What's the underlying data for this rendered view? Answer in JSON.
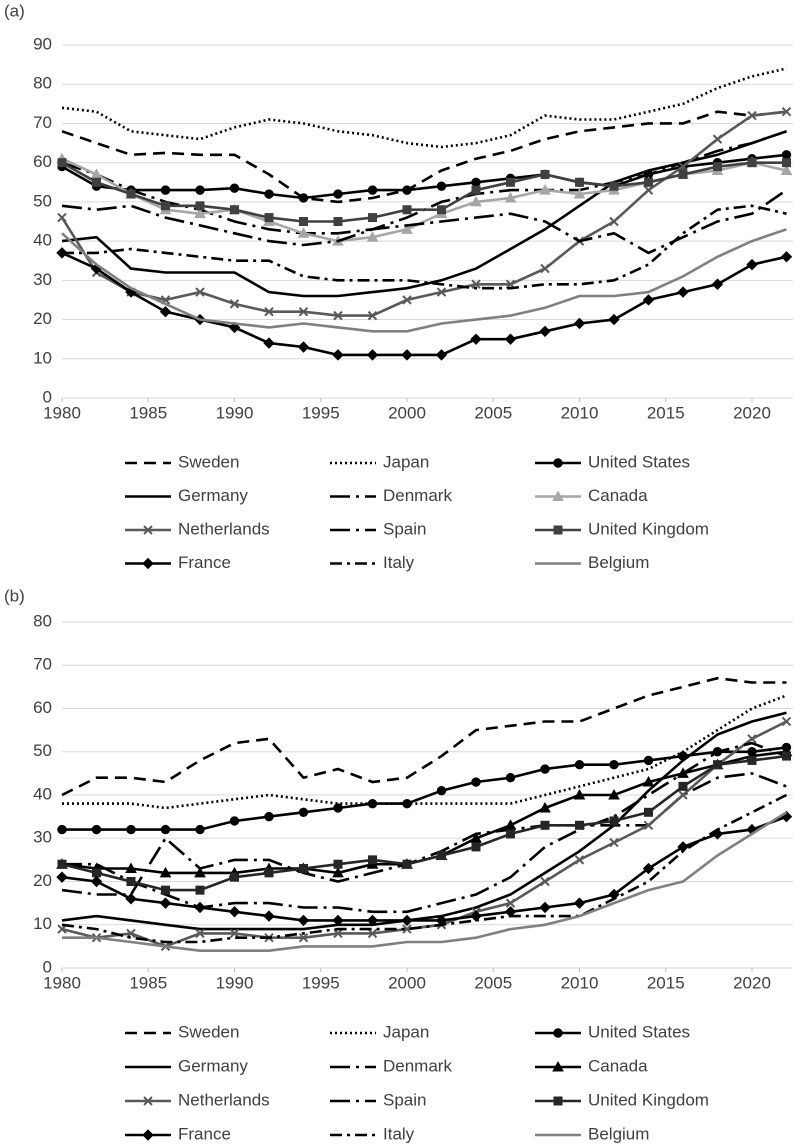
{
  "chart_data": [
    {
      "type": "line",
      "label": "(a)",
      "x": [
        1980,
        1982,
        1984,
        1986,
        1988,
        1990,
        1992,
        1994,
        1996,
        1998,
        2000,
        2002,
        2004,
        2006,
        2008,
        2010,
        2012,
        2014,
        2016,
        2018,
        2020,
        2022
      ],
      "xlim": [
        1980,
        2022
      ],
      "xticks": [
        1980,
        1985,
        1990,
        1995,
        2000,
        2005,
        2010,
        2015,
        2020
      ],
      "ylim": [
        0,
        90
      ],
      "yticks": [
        0,
        10,
        20,
        30,
        40,
        50,
        60,
        70,
        80,
        90
      ],
      "grid": true,
      "series": [
        {
          "name": "Sweden",
          "color": "#000000",
          "dash": "dashed",
          "marker": "none",
          "values": [
            68,
            65,
            62,
            62.5,
            62,
            62,
            57,
            51,
            50,
            51,
            53,
            58,
            61,
            63,
            66,
            68,
            69,
            70,
            70,
            73,
            72,
            73
          ]
        },
        {
          "name": "Japan",
          "color": "#000000",
          "dash": "dotted",
          "marker": "none",
          "values": [
            74,
            73,
            68,
            67,
            66,
            69,
            71,
            70,
            68,
            67,
            65,
            64,
            65,
            67,
            72,
            71,
            71,
            73,
            75,
            79,
            82,
            84
          ]
        },
        {
          "name": "United States",
          "color": "#000000",
          "dash": "solid",
          "marker": "circle",
          "values": [
            59,
            54,
            53,
            53,
            53,
            53.5,
            52,
            51,
            52,
            53,
            53,
            54,
            55,
            56,
            57,
            55,
            54,
            57,
            59,
            60,
            61,
            62
          ]
        },
        {
          "name": "Germany",
          "color": "#000000",
          "dash": "solid",
          "marker": "none",
          "values": [
            40,
            41,
            33,
            32,
            32,
            32,
            27,
            26,
            26,
            27,
            28,
            30,
            33,
            38,
            43,
            49,
            55,
            58,
            60,
            62,
            65,
            68
          ]
        },
        {
          "name": "Denmark",
          "color": "#000000",
          "dash": "long-dash-dot",
          "marker": "none",
          "values": [
            60,
            57,
            53,
            50,
            48,
            45,
            43,
            42,
            42,
            43,
            46,
            50,
            52,
            53,
            53,
            53,
            55,
            57,
            60,
            63,
            65,
            68
          ]
        },
        {
          "name": "Canada",
          "color": "#a6a6a6",
          "dash": "solid",
          "marker": "triangle",
          "values": [
            61,
            57,
            52,
            48,
            47,
            48,
            45,
            42,
            40,
            41,
            43,
            47,
            50,
            51,
            53,
            52,
            53,
            55,
            57,
            58,
            60,
            58
          ]
        },
        {
          "name": "Netherlands",
          "color": "#595959",
          "dash": "solid",
          "marker": "x",
          "values": [
            46,
            32,
            27,
            25,
            27,
            24,
            22,
            22,
            21,
            21,
            25,
            27,
            29,
            29,
            33,
            40,
            45,
            53,
            59,
            66,
            72,
            73
          ]
        },
        {
          "name": "Spain",
          "color": "#000000",
          "dash": "long-dash-dot",
          "marker": "none",
          "values": [
            49,
            48,
            49,
            46,
            44,
            42,
            40,
            39,
            40,
            43,
            44,
            45,
            46,
            47,
            45,
            40,
            42,
            37,
            41,
            45,
            47,
            53
          ]
        },
        {
          "name": "United Kingdom",
          "color": "#404040",
          "dash": "solid",
          "marker": "square",
          "values": [
            60,
            55,
            52,
            49,
            49,
            48,
            46,
            45,
            45,
            46,
            48,
            48,
            53,
            55,
            57,
            55,
            54,
            55,
            57,
            59,
            60,
            60
          ]
        },
        {
          "name": "France",
          "color": "#000000",
          "dash": "solid",
          "marker": "diamond",
          "values": [
            37,
            33,
            27,
            22,
            20,
            18,
            14,
            13,
            11,
            11,
            11,
            11,
            15,
            15,
            17,
            19,
            20,
            25,
            27,
            29,
            34,
            36
          ]
        },
        {
          "name": "Italy",
          "color": "#000000",
          "dash": "dash-dot",
          "marker": "none",
          "values": [
            37,
            37,
            38,
            37,
            36,
            35,
            35,
            31,
            30,
            30,
            30,
            29,
            28,
            28,
            29,
            29,
            30,
            34,
            42,
            48,
            49,
            47
          ]
        },
        {
          "name": "Belgium",
          "color": "#808080",
          "dash": "solid",
          "marker": "none",
          "values": [
            42,
            34,
            28,
            24,
            20,
            19,
            18,
            19,
            18,
            17,
            17,
            19,
            20,
            21,
            23,
            26,
            26,
            27,
            31,
            36,
            40,
            43
          ]
        }
      ]
    },
    {
      "type": "line",
      "label": "(b)",
      "x": [
        1980,
        1982,
        1984,
        1986,
        1988,
        1990,
        1992,
        1994,
        1996,
        1998,
        2000,
        2002,
        2004,
        2006,
        2008,
        2010,
        2012,
        2014,
        2016,
        2018,
        2020,
        2022
      ],
      "xlim": [
        1980,
        2022
      ],
      "xticks": [
        1980,
        1985,
        1990,
        1995,
        2000,
        2005,
        2010,
        2015,
        2020
      ],
      "ylim": [
        0,
        80
      ],
      "yticks": [
        0,
        10,
        20,
        30,
        40,
        50,
        60,
        70,
        80
      ],
      "grid": true,
      "series": [
        {
          "name": "Sweden",
          "color": "#000000",
          "dash": "dashed",
          "marker": "none",
          "values": [
            40,
            44,
            44,
            43,
            48,
            52,
            53,
            44,
            46,
            43,
            44,
            49,
            55,
            56,
            57,
            57,
            60,
            63,
            65,
            67,
            66,
            66
          ]
        },
        {
          "name": "Japan",
          "color": "#000000",
          "dash": "dotted",
          "marker": "none",
          "values": [
            38,
            38,
            38,
            37,
            38,
            39,
            40,
            39,
            38,
            38,
            38,
            38,
            38,
            38,
            40,
            42,
            44,
            46,
            50,
            55,
            60,
            63
          ]
        },
        {
          "name": "United States",
          "color": "#000000",
          "dash": "solid",
          "marker": "circle",
          "values": [
            32,
            32,
            32,
            32,
            32,
            34,
            35,
            36,
            37,
            38,
            38,
            41,
            43,
            44,
            46,
            47,
            47,
            48,
            49,
            50,
            50,
            51
          ]
        },
        {
          "name": "Germany",
          "color": "#000000",
          "dash": "solid",
          "marker": "none",
          "values": [
            11,
            12,
            11,
            10,
            9,
            9,
            9,
            9,
            10,
            10,
            11,
            12,
            14,
            17,
            22,
            27,
            33,
            41,
            48,
            54,
            57,
            59
          ]
        },
        {
          "name": "Denmark",
          "color": "#000000",
          "dash": "long-dash-dot",
          "marker": "none",
          "values": [
            18,
            17,
            17,
            30,
            23,
            25,
            25,
            22,
            20,
            22,
            24,
            27,
            31,
            32,
            33,
            33,
            33,
            33,
            40,
            44,
            45,
            42
          ]
        },
        {
          "name": "Canada",
          "color": "#000000",
          "dash": "solid",
          "marker": "triangle",
          "values": [
            24,
            23,
            23,
            22,
            22,
            22,
            23,
            23,
            22,
            24,
            24,
            26,
            30,
            33,
            37,
            40,
            40,
            43,
            45,
            47,
            49,
            50
          ]
        },
        {
          "name": "Netherlands",
          "color": "#595959",
          "dash": "solid",
          "marker": "x",
          "values": [
            9,
            7,
            8,
            5,
            8,
            8,
            7,
            7,
            8,
            8,
            9,
            10,
            13,
            15,
            20,
            25,
            29,
            33,
            40,
            47,
            53,
            57
          ]
        },
        {
          "name": "Spain",
          "color": "#000000",
          "dash": "long-dash-dot",
          "marker": "none",
          "values": [
            24,
            24,
            20,
            17,
            14,
            15,
            15,
            14,
            14,
            13,
            13,
            15,
            17,
            21,
            28,
            32,
            35,
            40,
            45,
            50,
            52,
            49
          ]
        },
        {
          "name": "United Kingdom",
          "color": "#262626",
          "dash": "solid",
          "marker": "square",
          "values": [
            24,
            22,
            20,
            18,
            18,
            21,
            22,
            23,
            24,
            25,
            24,
            26,
            28,
            31,
            33,
            33,
            34,
            36,
            42,
            47,
            48,
            49
          ]
        },
        {
          "name": "France",
          "color": "#000000",
          "dash": "solid",
          "marker": "diamond",
          "values": [
            21,
            20,
            16,
            15,
            14,
            13,
            12,
            11,
            11,
            11,
            11,
            11,
            12,
            13,
            14,
            15,
            17,
            23,
            28,
            31,
            32,
            35
          ]
        },
        {
          "name": "Italy",
          "color": "#000000",
          "dash": "dash-dot",
          "marker": "none",
          "values": [
            10,
            9,
            7,
            6,
            6,
            7,
            7,
            8,
            9,
            9,
            9,
            10,
            11,
            12,
            12,
            12,
            16,
            20,
            27,
            32,
            36,
            40
          ]
        },
        {
          "name": "Belgium",
          "color": "#808080",
          "dash": "solid",
          "marker": "none",
          "values": [
            7,
            7,
            6,
            5,
            4,
            4,
            4,
            5,
            5,
            5,
            6,
            6,
            7,
            9,
            10,
            12,
            15,
            18,
            20,
            26,
            31,
            36
          ]
        }
      ]
    }
  ]
}
